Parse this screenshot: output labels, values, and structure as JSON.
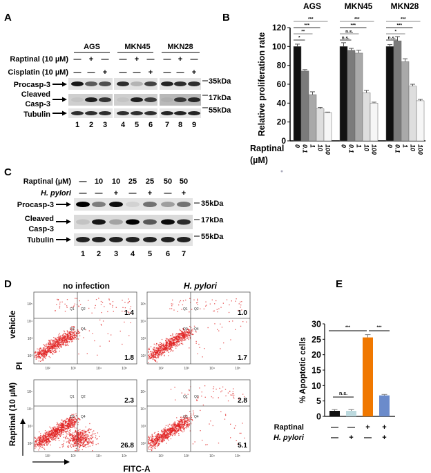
{
  "panel_a": {
    "letter": "A",
    "cell_lines": [
      "AGS",
      "MKN45",
      "MKN28"
    ],
    "rows": {
      "raptinal": "Raptinal (10 µM)",
      "cisplatin": "Cisplatin (10 µM)"
    },
    "raptinal_signs": [
      "—",
      "+",
      "—",
      "—",
      "+",
      "—",
      "—",
      "+",
      "—"
    ],
    "cisplatin_signs": [
      "—",
      "—",
      "+",
      "—",
      "—",
      "+",
      "—",
      "—",
      "+"
    ],
    "blots": [
      "Procasp-3",
      "Cleaved",
      "Casp-3",
      "Tubulin"
    ],
    "markers": [
      "35kDa",
      "17kDa",
      "55kDa"
    ],
    "lanes": [
      "1",
      "2",
      "3",
      "4",
      "5",
      "6",
      "7",
      "8",
      "9"
    ],
    "band_intensity": {
      "procasp": [
        0.9,
        0.6,
        0.65,
        0.8,
        0.2,
        0.7,
        0.85,
        0.8,
        0.8
      ],
      "cleaved": [
        0.05,
        0.85,
        0.75,
        0.05,
        0.85,
        0.7,
        0.05,
        0.7,
        0.8
      ],
      "tubulin": [
        0.8,
        0.8,
        0.8,
        0.8,
        0.8,
        0.8,
        0.85,
        0.85,
        0.85
      ]
    }
  },
  "panel_b": {
    "letter": "B"
  },
  "panel_c": {
    "letter": "C",
    "rows": {
      "raptinal": "Raptinal (µM)",
      "hpylori": "H. pylori"
    },
    "raptinal_values": [
      "—",
      "10",
      "10",
      "25",
      "25",
      "50",
      "50"
    ],
    "hpylori_signs": [
      "—",
      "—",
      "+",
      "—",
      "+",
      "—",
      "+"
    ],
    "blots": [
      "Procasp-3",
      "Cleaved",
      "Casp-3",
      "Tubulin"
    ],
    "markers": [
      "35kDa",
      "17kDa",
      "55kDa"
    ],
    "lanes": [
      "1",
      "2",
      "3",
      "4",
      "5",
      "6",
      "7"
    ],
    "band_intensity": {
      "procasp": [
        1.0,
        0.45,
        0.95,
        0.08,
        0.5,
        0.3,
        0.5
      ],
      "cleaved": [
        0.1,
        0.9,
        0.25,
        1.0,
        0.6,
        0.95,
        0.8
      ],
      "tubulin": [
        0.85,
        0.85,
        0.85,
        0.85,
        0.85,
        0.85,
        0.85
      ]
    }
  },
  "panel_d": {
    "letter": "D",
    "col_titles": [
      "no infection",
      "H. pylori"
    ],
    "row_titles": [
      "vehicle",
      "Raptinal (10 µM)"
    ],
    "y_label": "PI",
    "x_label": "FITC-A",
    "quadrants": [
      "Q1",
      "Q2",
      "Q3",
      "Q4"
    ],
    "axis_ticks": [
      "10²",
      "10³",
      "10⁴",
      "10⁵"
    ],
    "plots": [
      {
        "upper": "1.4",
        "lower": "1.8"
      },
      {
        "upper": "1.0",
        "lower": "1.7"
      },
      {
        "upper": "2.3",
        "lower": "26.8"
      },
      {
        "upper": "2.8",
        "lower": "5.1"
      }
    ],
    "dot_color": "#e02020"
  },
  "panel_e": {
    "letter": "E"
  },
  "chart_data": [
    {
      "type": "bar",
      "panel": "B",
      "ylabel": "Relative proliferation rate",
      "xlabel": "Raptinal",
      "xlabel_unit": "(µM)",
      "ylim": [
        0,
        120
      ],
      "yticks": [
        "0",
        "20",
        "40",
        "60",
        "80",
        "100",
        "120"
      ],
      "categories": [
        "0",
        "0.1",
        "1",
        "10",
        "100"
      ],
      "colors": [
        "#111111",
        "#7b7b7b",
        "#a9a9a9",
        "#dedede",
        "#f6f6f6"
      ],
      "groups": [
        {
          "name": "AGS",
          "values": [
            100,
            74,
            49,
            34,
            30
          ],
          "errors": [
            2.5,
            1.5,
            3,
            1.5,
            0.5
          ],
          "significance": [
            "*",
            "**",
            "***",
            "***"
          ]
        },
        {
          "name": "MKN45",
          "values": [
            100,
            96,
            93,
            51,
            40
          ],
          "errors": [
            4,
            2,
            3,
            2.5,
            1
          ],
          "significance": [
            "n.s.",
            "n.s.",
            "***",
            "***"
          ]
        },
        {
          "name": "MKN28",
          "values": [
            100,
            106,
            84,
            58,
            42.5
          ],
          "errors": [
            2,
            4.5,
            3,
            2,
            1.5
          ],
          "significance": [
            "n.s.",
            "*",
            "***",
            "***"
          ]
        }
      ]
    },
    {
      "type": "bar",
      "panel": "E",
      "ylabel": "% Apoptotic cells",
      "ylim": [
        0,
        30
      ],
      "yticks": [
        "0",
        "5",
        "10",
        "15",
        "20",
        "25",
        "30"
      ],
      "row_labels": [
        "Raptinal",
        "H. pylori"
      ],
      "raptinal": [
        "—",
        "—",
        "+",
        "+"
      ],
      "hpylori": [
        "—",
        "+",
        "—",
        "+"
      ],
      "values": [
        1.8,
        1.8,
        25.6,
        6.8
      ],
      "errors": [
        0.4,
        0.4,
        0.9,
        0.3
      ],
      "colors": [
        "#111111",
        "#bcd9de",
        "#f07800",
        "#6b8bcb"
      ],
      "significance": [
        {
          "pair": [
            1,
            2
          ],
          "label": "n.s."
        },
        {
          "pair": [
            1,
            3
          ],
          "label": "***"
        },
        {
          "pair": [
            3,
            4
          ],
          "label": "***"
        }
      ]
    }
  ]
}
